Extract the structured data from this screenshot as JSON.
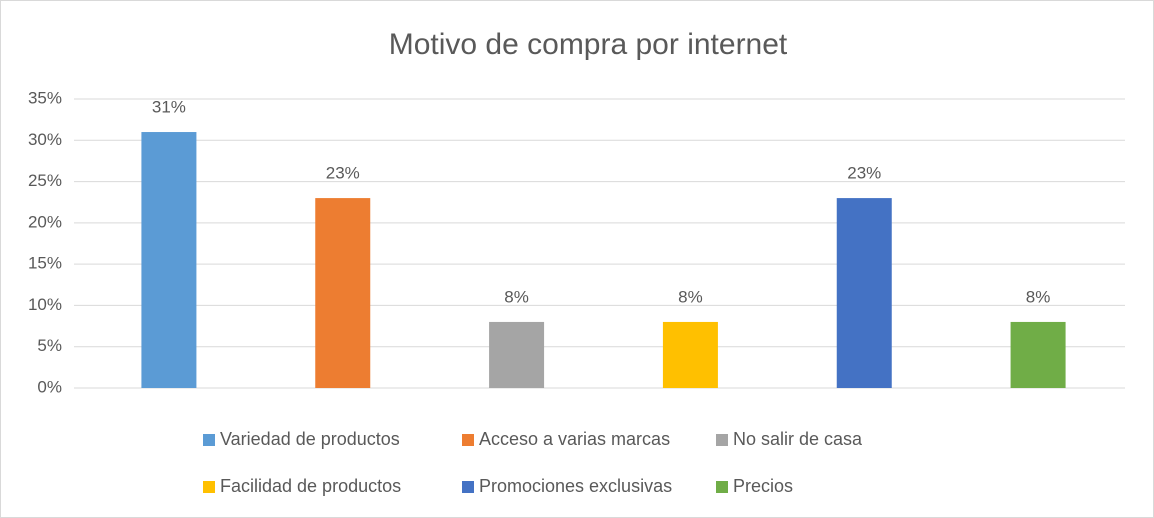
{
  "chart_data": {
    "type": "bar",
    "title": "Motivo de compra por internet",
    "categories": [
      "Variedad de productos",
      "Acceso a varias marcas",
      "No salir de casa",
      "Facilidad de productos",
      "Promociones exclusivas",
      "Precios"
    ],
    "values": [
      31,
      23,
      8,
      8,
      23,
      8
    ],
    "value_labels": [
      "31%",
      "23%",
      "8%",
      "8%",
      "23%",
      "8%"
    ],
    "colors": [
      "#5b9bd5",
      "#ed7d31",
      "#a5a5a5",
      "#ffc000",
      "#4472c4",
      "#70ad47"
    ],
    "ylim": [
      0,
      35
    ],
    "yticks": [
      {
        "value": 0,
        "label": "0%"
      },
      {
        "value": 5,
        "label": "5%"
      },
      {
        "value": 10,
        "label": "10%"
      },
      {
        "value": 15,
        "label": "15%"
      },
      {
        "value": 20,
        "label": "20%"
      },
      {
        "value": 25,
        "label": "25%"
      },
      {
        "value": 30,
        "label": "30%"
      },
      {
        "value": 35,
        "label": "35%"
      }
    ],
    "grid": true,
    "legend": "bottom"
  }
}
